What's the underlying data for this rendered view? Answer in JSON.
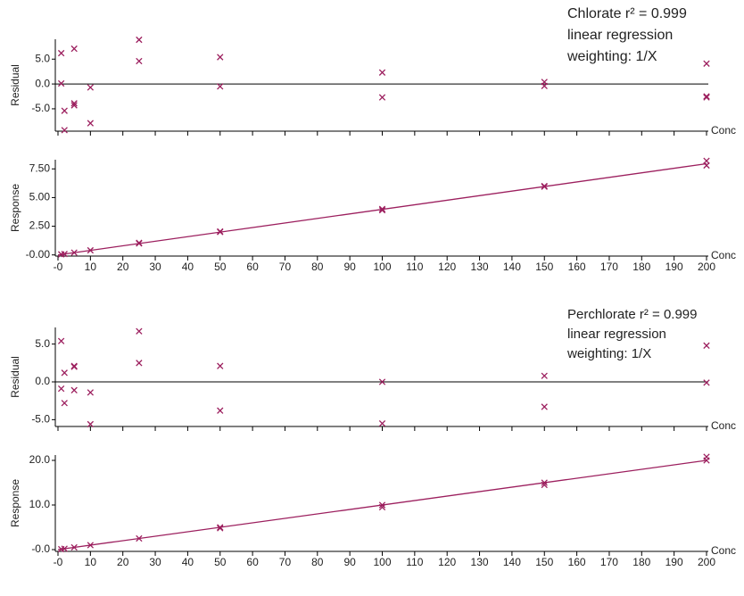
{
  "chart_data": [
    {
      "type": "scatter",
      "y_label": "Residual",
      "x_label": "Conc",
      "color": "#9c1f5e",
      "annotation": [
        "Chlorate r² = 0.999",
        "linear regression",
        "weighting: 1/X"
      ],
      "xlim": [
        0,
        200
      ],
      "xticks": [
        0,
        10,
        20,
        30,
        40,
        50,
        60,
        70,
        80,
        90,
        100,
        110,
        120,
        130,
        140,
        150,
        160,
        170,
        180,
        190,
        200
      ],
      "ylim": [
        -9.5,
        9.0
      ],
      "yticks": [
        {
          "value": 5,
          "label": "5.0"
        },
        {
          "value": 0,
          "label": "0.0"
        },
        {
          "value": -5,
          "label": "-5.0"
        }
      ],
      "hline": 0,
      "x": [
        1,
        1,
        2,
        2,
        5,
        5,
        5,
        10,
        10,
        25,
        25,
        50,
        50,
        100,
        100,
        150,
        150,
        200,
        200,
        200
      ],
      "values": [
        6.2,
        0.1,
        -5.4,
        -9.3,
        7.1,
        -3.9,
        -4.3,
        -0.7,
        -7.9,
        8.9,
        4.6,
        5.4,
        -0.5,
        2.3,
        -2.7,
        0.4,
        -0.4,
        4.1,
        -2.5,
        -2.7
      ]
    },
    {
      "type": "scatter",
      "y_label": "Response",
      "x_label": "Conc",
      "color": "#9c1f5e",
      "xlim": [
        0,
        200
      ],
      "xticks": [
        {
          "value": 0,
          "label": "-0"
        },
        10,
        20,
        30,
        40,
        50,
        60,
        70,
        80,
        90,
        100,
        110,
        120,
        130,
        140,
        150,
        160,
        170,
        180,
        190,
        200
      ],
      "ylim": [
        -0.1,
        8.3
      ],
      "yticks": [
        {
          "value": 7.5,
          "label": "7.50"
        },
        {
          "value": 5,
          "label": "5.00"
        },
        {
          "value": 2.5,
          "label": "2.50"
        },
        {
          "value": 0,
          "label": "-0.00"
        }
      ],
      "fit": {
        "x": [
          0,
          200
        ],
        "values": [
          0,
          7.95
        ]
      },
      "x": [
        1,
        2,
        5,
        10,
        25,
        25,
        50,
        50,
        100,
        100,
        150,
        150,
        200,
        200
      ],
      "values": [
        0.05,
        0.08,
        0.2,
        0.4,
        1.0,
        1.05,
        2.0,
        2.05,
        3.9,
        4.0,
        5.95,
        6.0,
        7.8,
        8.2
      ]
    },
    {
      "type": "scatter",
      "y_label": "Residual",
      "x_label": "Conc",
      "color": "#9c1f5e",
      "annotation": [
        "Perchlorate r² = 0.999",
        "linear regression",
        "weighting: 1/X"
      ],
      "xlim": [
        0,
        200
      ],
      "xticks": [
        0,
        10,
        20,
        30,
        40,
        50,
        60,
        70,
        80,
        90,
        100,
        110,
        120,
        130,
        140,
        150,
        160,
        170,
        180,
        190,
        200
      ],
      "ylim": [
        -5.9,
        7.2
      ],
      "yticks": [
        {
          "value": 5,
          "label": "5.0"
        },
        {
          "value": 0,
          "label": "0.0"
        },
        {
          "value": -5,
          "label": "-5.0"
        }
      ],
      "hline": 0,
      "x": [
        1,
        1,
        2,
        2,
        5,
        5,
        5,
        10,
        10,
        25,
        25,
        50,
        50,
        100,
        100,
        150,
        150,
        200,
        200
      ],
      "values": [
        5.4,
        -0.9,
        1.2,
        -2.8,
        2.1,
        2.0,
        -1.1,
        -1.4,
        -5.6,
        6.7,
        2.5,
        2.1,
        -3.8,
        0.0,
        -5.5,
        0.8,
        -3.3,
        4.8,
        -0.1
      ]
    },
    {
      "type": "scatter",
      "y_label": "Response",
      "x_label": "Conc",
      "color": "#9c1f5e",
      "xlim": [
        0,
        200
      ],
      "xticks": [
        {
          "value": 0,
          "label": "-0"
        },
        10,
        20,
        30,
        40,
        50,
        60,
        70,
        80,
        90,
        100,
        110,
        120,
        130,
        140,
        150,
        160,
        170,
        180,
        190,
        200
      ],
      "ylim": [
        -0.4,
        21.2
      ],
      "yticks": [
        {
          "value": 20,
          "label": "20.0"
        },
        {
          "value": 10,
          "label": "10.0"
        },
        {
          "value": 0,
          "label": "-0.0"
        }
      ],
      "fit": {
        "x": [
          0,
          200
        ],
        "values": [
          0,
          20.0
        ]
      },
      "x": [
        1,
        2,
        5,
        10,
        25,
        50,
        50,
        100,
        100,
        150,
        150,
        200,
        200
      ],
      "values": [
        0.1,
        0.2,
        0.5,
        1.0,
        2.5,
        4.8,
        5.0,
        9.5,
        10.0,
        14.5,
        15.0,
        20.0,
        20.8
      ]
    }
  ]
}
